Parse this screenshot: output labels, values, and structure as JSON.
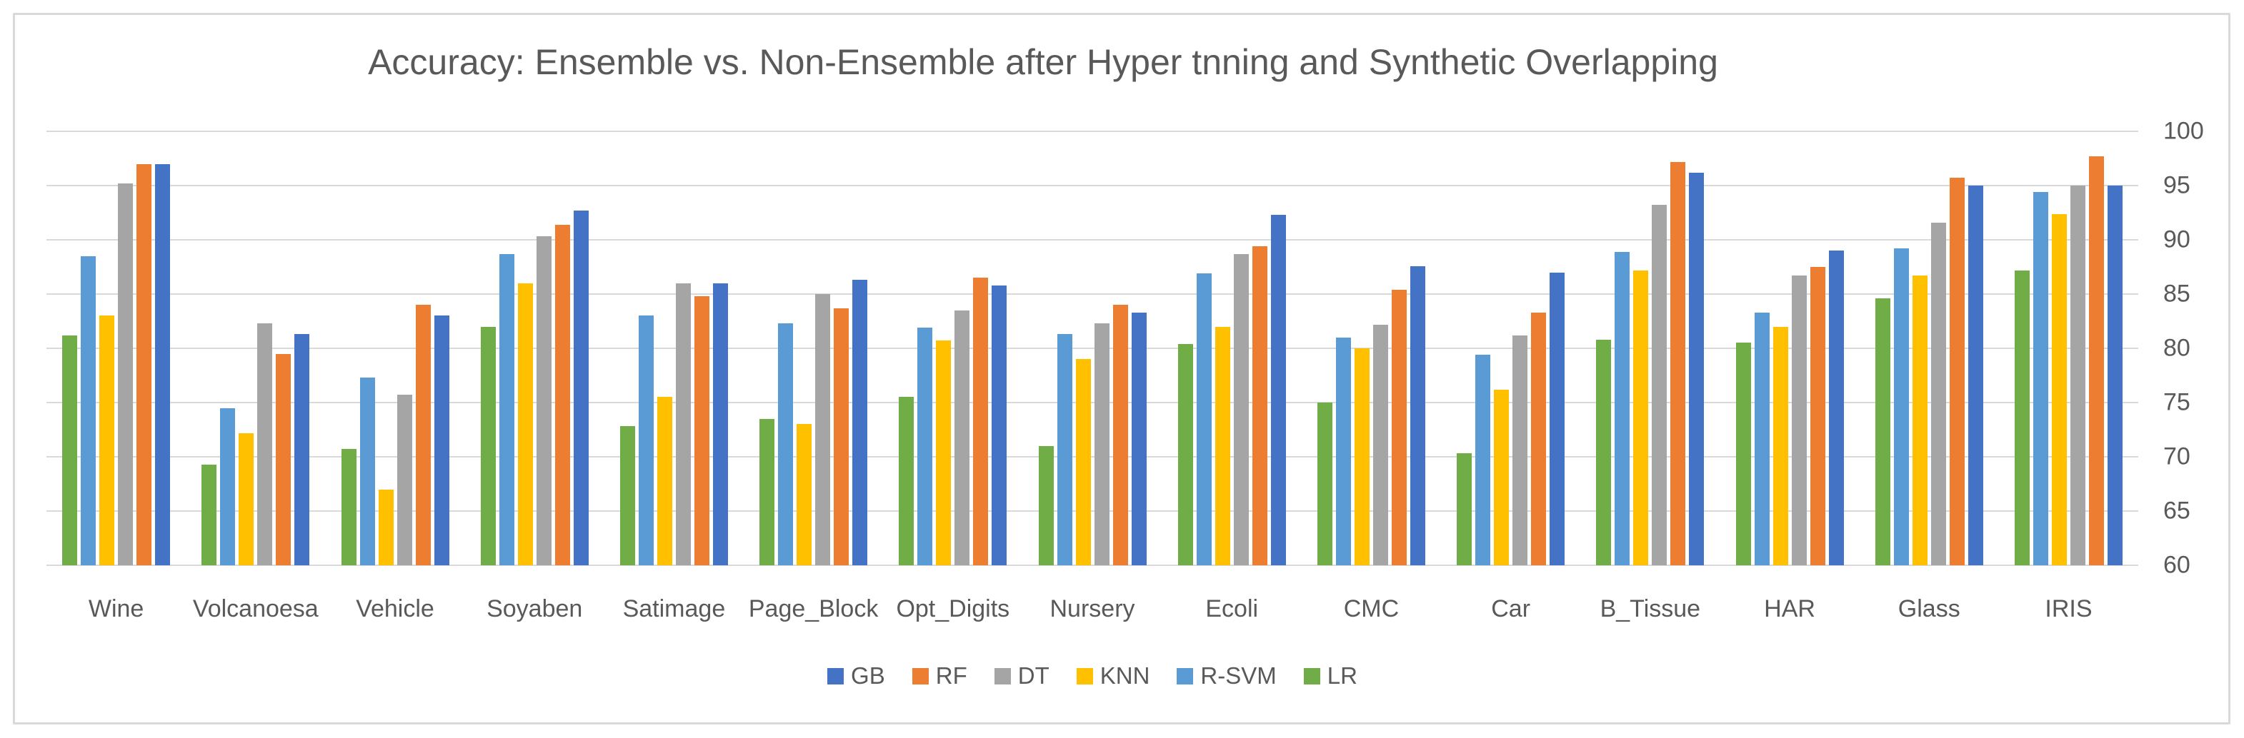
{
  "chart_title": "Accuracy: Ensemble vs. Non-Ensemble after Hyper tnning and Synthetic Overlapping",
  "colors": {
    "grid": "#d9d9d9",
    "axis_text": "#595959",
    "title_text": "#595959",
    "frame_border": "#d9d9d9",
    "background": "#ffffff"
  },
  "chart_data": {
    "type": "bar",
    "title": "Accuracy: Ensemble vs. Non-Ensemble after Hyper tnning and Synthetic Overlapping",
    "xlabel": "",
    "ylabel": "",
    "ylim": [
      60,
      100
    ],
    "yticks": [
      100,
      95,
      90,
      85,
      80,
      75,
      70,
      65,
      60
    ],
    "y_axis_side": "right",
    "grid": true,
    "legend_position": "bottom",
    "legend_order": [
      "GB",
      "RF",
      "DT",
      "KNN",
      "R-SVM",
      "LR"
    ],
    "bar_draw_order": [
      "LR",
      "R-SVM",
      "KNN",
      "DT",
      "RF",
      "GB"
    ],
    "categories": [
      "Wine",
      "Volcanoesa",
      "Vehicle",
      "Soyaben",
      "Satimage",
      "Page_Block",
      "Opt_Digits",
      "Nursery",
      "Ecoli",
      "CMC",
      "Car",
      "B_Tissue",
      "HAR",
      "Glass",
      "IRIS"
    ],
    "series": [
      {
        "name": "GB",
        "color": "#4472c4",
        "values": [
          97.0,
          81.3,
          83.0,
          92.7,
          86.0,
          86.3,
          85.8,
          83.3,
          92.3,
          87.6,
          87.0,
          96.2,
          89.0,
          95.0,
          95.0
        ]
      },
      {
        "name": "RF",
        "color": "#ed7d31",
        "values": [
          97.0,
          79.5,
          84.0,
          91.4,
          84.8,
          83.7,
          86.5,
          84.0,
          89.4,
          85.4,
          83.3,
          97.2,
          87.5,
          95.7,
          97.7
        ]
      },
      {
        "name": "DT",
        "color": "#a5a5a5",
        "values": [
          95.2,
          82.3,
          75.7,
          90.3,
          86.0,
          85.0,
          83.5,
          82.3,
          88.7,
          82.2,
          81.2,
          93.2,
          86.7,
          91.6,
          95.0
        ]
      },
      {
        "name": "KNN",
        "color": "#ffc000",
        "values": [
          83.0,
          72.2,
          67.0,
          86.0,
          75.5,
          73.0,
          80.7,
          79.0,
          82.0,
          80.0,
          76.2,
          87.2,
          82.0,
          86.7,
          92.4
        ]
      },
      {
        "name": "R-SVM",
        "color": "#5b9bd5",
        "values": [
          88.5,
          74.5,
          77.3,
          88.7,
          83.0,
          82.3,
          81.9,
          81.3,
          86.9,
          81.0,
          79.4,
          88.9,
          83.3,
          89.2,
          94.4
        ]
      },
      {
        "name": "LR",
        "color": "#70ad47",
        "values": [
          81.2,
          69.3,
          70.7,
          82.0,
          72.8,
          73.5,
          75.5,
          71.0,
          80.4,
          75.0,
          70.3,
          80.8,
          80.5,
          84.6,
          87.2
        ]
      }
    ]
  }
}
